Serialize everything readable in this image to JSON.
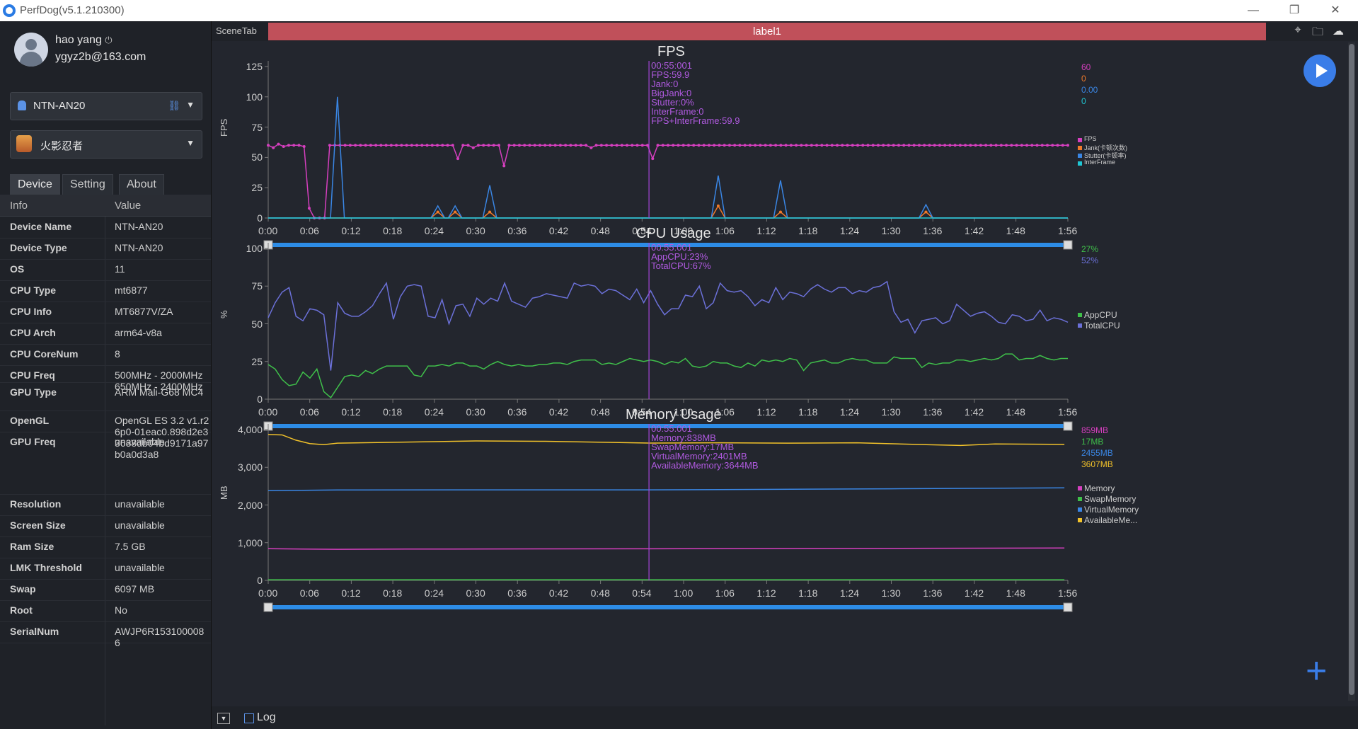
{
  "window": {
    "title": "PerfDog(v5.1.210300)",
    "minimize": "—",
    "restore": "❐",
    "close": "✕"
  },
  "user": {
    "name": "hao yang",
    "power_icon": "⏻",
    "email": "ygyz2b@163.com"
  },
  "device_selector": {
    "label": "NTN-AN20",
    "link_icon": "link-icon"
  },
  "app_selector": {
    "label": "火影忍者"
  },
  "tabs": [
    "Device",
    "Setting",
    "About"
  ],
  "info_table": {
    "headers": [
      "Info",
      "Value"
    ],
    "rows": [
      {
        "k": "Device Name",
        "v": "NTN-AN20"
      },
      {
        "k": "Device Type",
        "v": "NTN-AN20"
      },
      {
        "k": "OS",
        "v": "11"
      },
      {
        "k": "CPU Type",
        "v": "mt6877"
      },
      {
        "k": "CPU Info",
        "v": "MT6877V/ZA"
      },
      {
        "k": "CPU Arch",
        "v": "arm64-v8a"
      },
      {
        "k": "CPU CoreNum",
        "v": "8"
      },
      {
        "k": "CPU Freq",
        "v": "500MHz - 2000MHz 650MHz - 2400MHz"
      },
      {
        "k": "GPU Type",
        "v": "ARM Mali-G68 MC4"
      },
      {
        "k": "OpenGL",
        "v": "OpenGL ES 3.2 v1.r26p0-01eac0.898d2e33638db04bd9171a97b0a0d3a8"
      },
      {
        "k": "GPU Freq",
        "v": "unavailable"
      },
      {
        "k": "Resolution",
        "v": "unavailable"
      },
      {
        "k": "Screen Size",
        "v": "unavailable"
      },
      {
        "k": "Ram Size",
        "v": "7.5 GB"
      },
      {
        "k": "LMK Threshold",
        "v": "unavailable"
      },
      {
        "k": "Swap",
        "v": "6097 MB"
      },
      {
        "k": "Root",
        "v": "No"
      },
      {
        "k": "SerialNum",
        "v": "AWJP6R1531000086"
      }
    ]
  },
  "topbar": {
    "scene_tab": "SceneTab",
    "label": "label1"
  },
  "bottombar": {
    "log_label": "Log"
  },
  "x_ticks": [
    "0:00",
    "0:06",
    "0:12",
    "0:18",
    "0:24",
    "0:30",
    "0:36",
    "0:42",
    "0:48",
    "0:54",
    "1:00",
    "1:06",
    "1:12",
    "1:18",
    "1:24",
    "1:30",
    "1:36",
    "1:42",
    "1:48",
    "1:56"
  ],
  "cursor_time": "00:55:001",
  "chart_data": [
    {
      "type": "line",
      "title": "FPS",
      "ylabel": "FPS",
      "ylim": [
        0,
        125
      ],
      "yticks": [
        0,
        25,
        50,
        75,
        100,
        125
      ],
      "cursor_lines": [
        "00:55:001",
        "FPS:59.9",
        "Jank:0",
        "BigJank:0",
        "Stutter:0%",
        "InterFrame:0",
        "FPS+InterFrame:59.9"
      ],
      "series": [
        {
          "name": "FPS",
          "color": "#d63fbf",
          "current": "60",
          "values": [
            60,
            58,
            61,
            59,
            60,
            60,
            60,
            59,
            8,
            0,
            0,
            0,
            60,
            60,
            60,
            60,
            60,
            60,
            60,
            60,
            60,
            60,
            60,
            60,
            60,
            60,
            60,
            60,
            60,
            60,
            60,
            60,
            60,
            60,
            60,
            60,
            60,
            49,
            60,
            60,
            58,
            60,
            60,
            60,
            60,
            60,
            43,
            60,
            60,
            60,
            60,
            60,
            60,
            60,
            60,
            60,
            60,
            60,
            60,
            60,
            60,
            60,
            60,
            58,
            60,
            60,
            60,
            60,
            60,
            60,
            60,
            60,
            60,
            60,
            60,
            49,
            60,
            60,
            60,
            60,
            60,
            60,
            60,
            60,
            60,
            60,
            60,
            60,
            60,
            60,
            60,
            60,
            60,
            60,
            60,
            60,
            60,
            60,
            60,
            60,
            60,
            60,
            60,
            60,
            60,
            60,
            60,
            60,
            60,
            60,
            60,
            60,
            60,
            60,
            60,
            60,
            60,
            60,
            60,
            60,
            60,
            60,
            60,
            60,
            60,
            60,
            60,
            60,
            60,
            60,
            60,
            60,
            60,
            60,
            60,
            60,
            60,
            60,
            60,
            60,
            60,
            60,
            60,
            60,
            60,
            60,
            60,
            60,
            60,
            60,
            60,
            60,
            60,
            60,
            60,
            60,
            60
          ]
        },
        {
          "name": "Jank(卡顿次数)",
          "color": "#f07a2a",
          "current": "0",
          "values": [
            [
              24.5,
              5
            ],
            [
              27,
              5
            ],
            [
              32,
              5
            ],
            [
              65,
              10
            ],
            [
              74,
              5
            ],
            [
              95,
              5
            ]
          ]
        },
        {
          "name": "Stutter(卡顿率)",
          "color": "#3a86e4",
          "current": "0.00",
          "values": [
            [
              10,
              100
            ],
            [
              24.5,
              10
            ],
            [
              27,
              10
            ],
            [
              32,
              27
            ],
            [
              65,
              35
            ],
            [
              74,
              31
            ],
            [
              95,
              11
            ]
          ]
        },
        {
          "name": "InterFrame",
          "color": "#1fc7d4",
          "current": "0",
          "values": []
        }
      ]
    },
    {
      "type": "line",
      "title": "CPU Usage",
      "ylabel": "%",
      "ylim": [
        0,
        100
      ],
      "yticks": [
        0,
        25,
        50,
        75,
        100
      ],
      "cursor_lines": [
        "00:55:001",
        "AppCPU:23%",
        "TotalCPU:67%"
      ],
      "series": [
        {
          "name": "AppCPU",
          "color": "#3fbf4a",
          "current": "27%",
          "values": [
            23,
            20,
            13,
            9,
            10,
            18,
            14,
            20,
            5,
            1,
            8,
            15,
            16,
            15,
            19,
            17,
            20,
            22,
            22,
            22,
            22,
            16,
            15,
            22,
            22,
            23,
            22,
            24,
            24,
            22,
            22,
            20,
            23,
            25,
            23,
            22,
            23,
            22,
            22,
            23,
            23,
            24,
            24,
            23,
            25,
            26,
            26,
            26,
            23,
            24,
            23,
            25,
            27,
            26,
            25,
            26,
            25,
            23,
            25,
            24,
            27,
            22,
            21,
            22,
            25,
            24,
            24,
            22,
            21,
            24,
            22,
            26,
            25,
            26,
            25,
            27,
            26,
            19,
            24,
            25,
            26,
            24,
            24,
            26,
            27,
            26,
            26,
            24,
            24,
            24,
            28,
            27,
            27,
            27,
            21,
            24,
            23,
            24,
            24,
            26,
            26,
            25,
            26,
            27,
            26,
            27,
            30,
            30,
            26,
            27,
            27,
            29,
            27,
            26,
            27,
            27
          ]
        },
        {
          "name": "TotalCPU",
          "color": "#6b70d8",
          "current": "52%",
          "values": [
            54,
            64,
            71,
            74,
            55,
            52,
            60,
            59,
            56,
            19,
            64,
            57,
            55,
            55,
            58,
            62,
            70,
            77,
            53,
            68,
            75,
            76,
            75,
            55,
            54,
            66,
            50,
            62,
            63,
            55,
            67,
            63,
            67,
            65,
            77,
            65,
            63,
            61,
            67,
            68,
            70,
            69,
            68,
            67,
            77,
            75,
            76,
            75,
            70,
            73,
            72,
            69,
            66,
            73,
            64,
            72,
            63,
            56,
            60,
            60,
            69,
            68,
            75,
            60,
            64,
            77,
            72,
            71,
            72,
            68,
            62,
            66,
            64,
            74,
            66,
            71,
            70,
            68,
            73,
            76,
            73,
            71,
            74,
            74,
            70,
            72,
            71,
            74,
            75,
            78,
            58,
            51,
            53,
            44,
            52,
            53,
            54,
            50,
            52,
            63,
            59,
            55,
            57,
            58,
            55,
            51,
            50,
            56,
            55,
            52,
            53,
            59,
            52,
            54,
            53,
            51
          ]
        }
      ]
    },
    {
      "type": "line",
      "title": "Memory Usage",
      "ylabel": "MB",
      "ylim": [
        0,
        4000
      ],
      "yticks": [
        0,
        1000,
        2000,
        3000,
        4000
      ],
      "cursor_lines": [
        "00:55:001",
        "Memory:838MB",
        "SwapMemory:17MB",
        "VirtualMemory:2401MB",
        "AvailableMemory:3644MB"
      ],
      "series": [
        {
          "name": "Memory",
          "color": "#d63fbf",
          "current": "859MB",
          "values": [
            [
              0,
              840
            ],
            [
              5,
              830
            ],
            [
              10,
              825
            ],
            [
              20,
              830
            ],
            [
              40,
              835
            ],
            [
              55,
              838
            ],
            [
              70,
              845
            ],
            [
              90,
              850
            ],
            [
              115,
              859
            ]
          ]
        },
        {
          "name": "SwapMemory",
          "color": "#3fbf4a",
          "current": "17MB",
          "values": [
            [
              0,
              17
            ],
            [
              115,
              17
            ]
          ]
        },
        {
          "name": "VirtualMemory",
          "color": "#3a86e4",
          "current": "2455MB",
          "values": [
            [
              0,
              2380
            ],
            [
              10,
              2400
            ],
            [
              55,
              2401
            ],
            [
              90,
              2430
            ],
            [
              115,
              2455
            ]
          ]
        },
        {
          "name": "AvailableMe...",
          "color": "#f2c22a",
          "current": "3607MB",
          "values": [
            [
              0,
              3870
            ],
            [
              2,
              3860
            ],
            [
              4,
              3720
            ],
            [
              6,
              3630
            ],
            [
              8,
              3600
            ],
            [
              10,
              3640
            ],
            [
              20,
              3670
            ],
            [
              30,
              3700
            ],
            [
              40,
              3690
            ],
            [
              55,
              3644
            ],
            [
              65,
              3650
            ],
            [
              75,
              3640
            ],
            [
              85,
              3650
            ],
            [
              95,
              3600
            ],
            [
              100,
              3580
            ],
            [
              105,
              3620
            ],
            [
              115,
              3607
            ]
          ]
        }
      ]
    }
  ]
}
